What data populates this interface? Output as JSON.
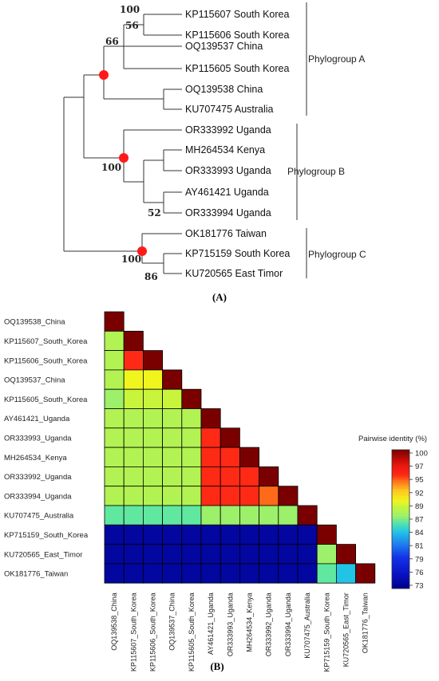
{
  "panel_a": {
    "label": "(A)",
    "leaves": [
      "KP115607 South Korea",
      "KP115606 South Korea",
      "OQ139537 China",
      "KP115605 South Korea",
      "OQ139538 China",
      "KU707475 Australia",
      "OR333992 Uganda",
      "MH264534 Kenya",
      "OR333993 Uganda",
      "AY461421 Uganda",
      "OR333994 Uganda",
      "OK181776 Taiwan",
      "KP715159 South Korea",
      "KU720565 East Timor"
    ],
    "bootstraps": [
      "100",
      "56",
      "66",
      "100",
      "52",
      "100",
      "86"
    ],
    "phylogroups": [
      "Phylogroup A",
      "Phylogroup B",
      "Phylogroup C"
    ],
    "node_marker_color": "#ff1a1a"
  },
  "panel_b": {
    "label": "(B)",
    "row_labels": [
      "OQ139538_China",
      "KP115607_South_Korea",
      "KP115606_South_Korea",
      "OQ139537_China",
      "KP115605_South_Korea",
      "AY461421_Uganda",
      "OR333993_Uganda",
      "MH264534_Kenya",
      "OR333992_Uganda",
      "OR333994_Uganda",
      "KU707475_Australia",
      "KP715159_South_Korea",
      "KU720565_East_Timor",
      "OK181776_Taiwan"
    ],
    "col_labels": [
      "OQ139538_China",
      "KP115607_South_Korea",
      "KP115606_South_Korea",
      "OQ139537_China",
      "KP115605_South_Korea",
      "AY461421_Uganda",
      "OR333993_Uganda",
      "MH264534_Kenya",
      "OR333992_Uganda",
      "OR333994_Uganda",
      "KU707475_Australia",
      "KP715159_South_Korea",
      "KU720565_East_Timor",
      "OK181776_Taiwan"
    ],
    "legend_title": "Pairwise identity (%)",
    "legend_ticks": [
      "100",
      "97",
      "95",
      "92",
      "89",
      "87",
      "84",
      "81",
      "79",
      "76",
      "73"
    ]
  },
  "chart_data": {
    "type": "heatmap",
    "title": "",
    "value_label": "Pairwise identity (%)",
    "color_range": [
      73,
      100
    ],
    "rows": [
      "OQ139538_China",
      "KP115607_South_Korea",
      "KP115606_South_Korea",
      "OQ139537_China",
      "KP115605_South_Korea",
      "AY461421_Uganda",
      "OR333993_Uganda",
      "MH264534_Kenya",
      "OR333992_Uganda",
      "OR333994_Uganda",
      "KU707475_Australia",
      "KP715159_South_Korea",
      "KU720565_East_Timor",
      "OK181776_Taiwan"
    ],
    "values": [
      [
        100
      ],
      [
        88,
        100
      ],
      [
        88,
        95,
        100
      ],
      [
        88,
        90,
        90,
        100
      ],
      [
        87,
        89,
        89,
        89,
        100
      ],
      [
        88,
        88,
        88,
        88,
        88,
        100
      ],
      [
        88,
        88,
        88,
        88,
        88,
        95,
        100
      ],
      [
        88,
        88,
        88,
        88,
        88,
        95,
        95,
        100
      ],
      [
        88,
        88,
        88,
        88,
        88,
        95,
        95,
        95,
        100
      ],
      [
        88,
        88,
        88,
        88,
        88,
        95,
        95,
        95,
        94,
        100
      ],
      [
        86,
        86,
        86,
        86,
        86,
        87,
        87,
        87,
        87,
        87,
        100
      ],
      [
        74,
        74,
        74,
        74,
        74,
        74,
        74,
        74,
        74,
        74,
        74,
        100
      ],
      [
        74,
        74,
        74,
        74,
        74,
        74,
        74,
        74,
        74,
        74,
        74,
        87,
        100
      ],
      [
        74,
        74,
        74,
        74,
        74,
        74,
        74,
        74,
        74,
        74,
        74,
        86,
        84,
        100
      ]
    ]
  }
}
